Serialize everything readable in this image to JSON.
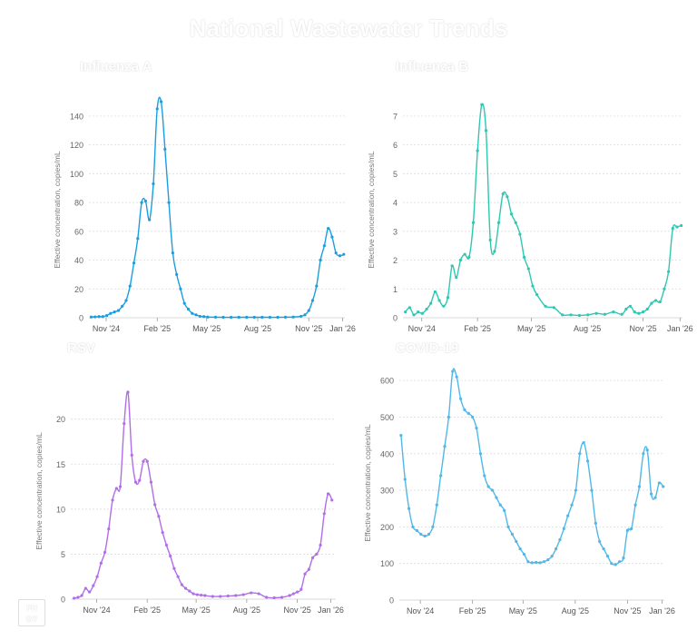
{
  "title": "National Wastewater Trends",
  "logo_text": "FH\nGY",
  "axis_ylabel": "Effective concentration, copies/mL",
  "chart_data": [
    {
      "type": "line",
      "title": "Influenza A",
      "color": "#1a9ee0",
      "ylabel": "Effective concentration, copies/mL",
      "ylim": [
        0,
        150
      ],
      "yticks": [
        0,
        20,
        40,
        60,
        80,
        100,
        120,
        140
      ],
      "xlim": [
        "2024-10-01",
        "2026-01-05"
      ],
      "xticks": [
        {
          "date": "2024-11-01",
          "label": "Nov '24"
        },
        {
          "date": "2025-02-01",
          "label": "Feb '25"
        },
        {
          "date": "2025-05-01",
          "label": "May '25"
        },
        {
          "date": "2025-08-01",
          "label": "Aug '25"
        },
        {
          "date": "2025-11-01",
          "label": "Nov '25"
        },
        {
          "date": "2026-01-01",
          "label": "Jan '26"
        }
      ],
      "x": [
        "2024-10-05",
        "2024-10-12",
        "2024-10-19",
        "2024-10-26",
        "2024-11-02",
        "2024-11-09",
        "2024-11-16",
        "2024-11-23",
        "2024-11-30",
        "2024-12-07",
        "2024-12-14",
        "2024-12-21",
        "2024-12-28",
        "2025-01-04",
        "2025-01-11",
        "2025-01-18",
        "2025-01-25",
        "2025-02-01",
        "2025-02-08",
        "2025-02-15",
        "2025-02-22",
        "2025-03-01",
        "2025-03-08",
        "2025-03-15",
        "2025-03-22",
        "2025-03-29",
        "2025-04-05",
        "2025-04-12",
        "2025-04-19",
        "2025-04-26",
        "2025-05-03",
        "2025-05-17",
        "2025-05-31",
        "2025-06-14",
        "2025-06-28",
        "2025-07-12",
        "2025-07-26",
        "2025-08-09",
        "2025-08-23",
        "2025-09-06",
        "2025-09-20",
        "2025-10-04",
        "2025-10-18",
        "2025-10-25",
        "2025-11-01",
        "2025-11-08",
        "2025-11-15",
        "2025-11-22",
        "2025-11-29",
        "2025-12-06",
        "2025-12-13",
        "2025-12-20",
        "2025-12-27",
        "2026-01-03"
      ],
      "y": [
        0.5,
        0.6,
        0.8,
        0.8,
        1.5,
        3,
        4,
        5,
        8,
        12,
        22,
        38,
        55,
        80,
        81,
        68,
        93,
        145,
        150,
        117,
        80,
        45,
        30,
        20,
        10,
        6,
        3,
        2,
        1,
        0.8,
        0.5,
        0.4,
        0.3,
        0.3,
        0.3,
        0.3,
        0.3,
        0.3,
        0.3,
        0.3,
        0.4,
        0.5,
        1,
        2,
        5,
        12,
        22,
        40,
        50,
        62,
        56,
        45,
        43,
        44
      ]
    },
    {
      "type": "line",
      "title": "Influenza B",
      "color": "#2ec7b1",
      "ylabel": "Effective concentration, copies/mL",
      "ylim": [
        0,
        7.5
      ],
      "yticks": [
        0,
        1,
        2,
        3,
        4,
        5,
        6,
        7
      ],
      "xlim": [
        "2024-10-01",
        "2026-01-05"
      ],
      "xticks": [
        {
          "date": "2024-11-01",
          "label": "Nov '24"
        },
        {
          "date": "2025-02-01",
          "label": "Feb '25"
        },
        {
          "date": "2025-05-01",
          "label": "May '25"
        },
        {
          "date": "2025-08-01",
          "label": "Aug '25"
        },
        {
          "date": "2025-11-01",
          "label": "Nov '25"
        },
        {
          "date": "2026-01-01",
          "label": "Jan '26"
        }
      ],
      "x": [
        "2024-10-05",
        "2024-10-12",
        "2024-10-19",
        "2024-10-26",
        "2024-11-02",
        "2024-11-09",
        "2024-11-16",
        "2024-11-23",
        "2024-11-30",
        "2024-12-07",
        "2024-12-14",
        "2024-12-21",
        "2024-12-28",
        "2025-01-04",
        "2025-01-11",
        "2025-01-18",
        "2025-01-25",
        "2025-02-01",
        "2025-02-08",
        "2025-02-15",
        "2025-02-22",
        "2025-03-01",
        "2025-03-08",
        "2025-03-15",
        "2025-03-22",
        "2025-03-29",
        "2025-04-05",
        "2025-04-12",
        "2025-04-19",
        "2025-04-26",
        "2025-05-03",
        "2025-05-10",
        "2025-05-24",
        "2025-06-07",
        "2025-06-21",
        "2025-07-05",
        "2025-07-19",
        "2025-08-02",
        "2025-08-16",
        "2025-08-30",
        "2025-09-13",
        "2025-09-27",
        "2025-10-04",
        "2025-10-11",
        "2025-10-18",
        "2025-10-25",
        "2025-11-01",
        "2025-11-08",
        "2025-11-15",
        "2025-11-22",
        "2025-11-29",
        "2025-12-06",
        "2025-12-13",
        "2025-12-20",
        "2025-12-27",
        "2026-01-03"
      ],
      "y": [
        0.2,
        0.35,
        0.1,
        0.2,
        0.15,
        0.3,
        0.5,
        0.9,
        0.6,
        0.4,
        0.7,
        1.8,
        1.4,
        2.0,
        2.2,
        2.1,
        3.3,
        5.8,
        7.4,
        6.5,
        2.7,
        2.3,
        3.3,
        4.3,
        4.2,
        3.6,
        3.3,
        2.9,
        2.1,
        1.7,
        1.1,
        0.8,
        0.4,
        0.35,
        0.1,
        0.1,
        0.08,
        0.1,
        0.15,
        0.12,
        0.2,
        0.12,
        0.3,
        0.4,
        0.2,
        0.15,
        0.2,
        0.3,
        0.5,
        0.6,
        0.55,
        1.0,
        1.6,
        3.1,
        3.15,
        3.2
      ]
    },
    {
      "type": "line",
      "title": "RSV",
      "color": "#b16ee8",
      "ylabel": "Effective concentration, copies/mL",
      "ylim": [
        0,
        24
      ],
      "yticks": [
        0,
        5,
        10,
        15,
        20
      ],
      "xlim": [
        "2024-09-15",
        "2026-01-10"
      ],
      "xticks": [
        {
          "date": "2024-11-01",
          "label": "Nov '24"
        },
        {
          "date": "2025-02-01",
          "label": "Feb '25"
        },
        {
          "date": "2025-05-01",
          "label": "May '25"
        },
        {
          "date": "2025-08-01",
          "label": "Aug '25"
        },
        {
          "date": "2025-11-01",
          "label": "Nov '25"
        },
        {
          "date": "2026-01-01",
          "label": "Jan '26"
        }
      ],
      "x": [
        "2024-09-21",
        "2024-09-28",
        "2024-10-05",
        "2024-10-12",
        "2024-10-19",
        "2024-10-26",
        "2024-11-02",
        "2024-11-09",
        "2024-11-16",
        "2024-11-23",
        "2024-11-30",
        "2024-12-07",
        "2024-12-14",
        "2024-12-21",
        "2024-12-28",
        "2025-01-04",
        "2025-01-11",
        "2025-01-18",
        "2025-01-25",
        "2025-02-01",
        "2025-02-08",
        "2025-02-15",
        "2025-02-22",
        "2025-03-01",
        "2025-03-08",
        "2025-03-15",
        "2025-03-22",
        "2025-03-29",
        "2025-04-05",
        "2025-04-12",
        "2025-04-19",
        "2025-04-26",
        "2025-05-03",
        "2025-05-10",
        "2025-05-17",
        "2025-05-31",
        "2025-06-14",
        "2025-06-28",
        "2025-07-12",
        "2025-07-26",
        "2025-08-09",
        "2025-08-23",
        "2025-09-06",
        "2025-09-20",
        "2025-10-04",
        "2025-10-18",
        "2025-10-25",
        "2025-11-01",
        "2025-11-08",
        "2025-11-15",
        "2025-11-22",
        "2025-11-29",
        "2025-12-06",
        "2025-12-13",
        "2025-12-20",
        "2025-12-27",
        "2026-01-03"
      ],
      "y": [
        0.1,
        0.2,
        0.4,
        1.2,
        0.8,
        1.5,
        2.5,
        4.0,
        5.2,
        7.8,
        11.0,
        12.3,
        12.5,
        19.5,
        23.0,
        16.0,
        13.0,
        13.2,
        15.3,
        15.3,
        13.0,
        10.5,
        9.2,
        7.4,
        6.0,
        4.8,
        3.4,
        2.5,
        1.6,
        1.2,
        0.9,
        0.6,
        0.5,
        0.45,
        0.4,
        0.3,
        0.3,
        0.35,
        0.4,
        0.5,
        0.7,
        0.6,
        0.2,
        0.15,
        0.2,
        0.4,
        0.6,
        0.8,
        1.1,
        2.8,
        3.3,
        4.6,
        5.0,
        6.0,
        9.5,
        11.7,
        11.0
      ]
    },
    {
      "type": "line",
      "title": "COVID-19",
      "color": "#4fb8e8",
      "ylabel": "Effective concentration, copies/mL",
      "ylim": [
        0,
        640
      ],
      "yticks": [
        0,
        100,
        200,
        300,
        400,
        500,
        600
      ],
      "xlim": [
        "2024-09-25",
        "2026-01-05"
      ],
      "xticks": [
        {
          "date": "2024-11-01",
          "label": "Nov '24"
        },
        {
          "date": "2025-02-01",
          "label": "Feb '25"
        },
        {
          "date": "2025-05-01",
          "label": "May '25"
        },
        {
          "date": "2025-08-01",
          "label": "Aug '25"
        },
        {
          "date": "2025-11-01",
          "label": "Nov '25"
        },
        {
          "date": "2026-01-01",
          "label": "Jan '26"
        }
      ],
      "x": [
        "2024-09-28",
        "2024-10-05",
        "2024-10-12",
        "2024-10-19",
        "2024-10-26",
        "2024-11-02",
        "2024-11-09",
        "2024-11-16",
        "2024-11-23",
        "2024-11-30",
        "2024-12-07",
        "2024-12-14",
        "2024-12-21",
        "2024-12-28",
        "2025-01-04",
        "2025-01-11",
        "2025-01-18",
        "2025-01-25",
        "2025-02-01",
        "2025-02-08",
        "2025-02-15",
        "2025-02-22",
        "2025-03-01",
        "2025-03-08",
        "2025-03-15",
        "2025-03-22",
        "2025-03-29",
        "2025-04-05",
        "2025-04-12",
        "2025-04-19",
        "2025-04-26",
        "2025-05-03",
        "2025-05-10",
        "2025-05-17",
        "2025-05-24",
        "2025-05-31",
        "2025-06-07",
        "2025-06-14",
        "2025-06-21",
        "2025-06-28",
        "2025-07-05",
        "2025-07-12",
        "2025-07-19",
        "2025-07-26",
        "2025-08-02",
        "2025-08-09",
        "2025-08-16",
        "2025-08-23",
        "2025-08-30",
        "2025-09-06",
        "2025-09-13",
        "2025-09-20",
        "2025-09-27",
        "2025-10-04",
        "2025-10-11",
        "2025-10-18",
        "2025-10-25",
        "2025-11-01",
        "2025-11-08",
        "2025-11-15",
        "2025-11-22",
        "2025-11-29",
        "2025-12-06",
        "2025-12-13",
        "2025-12-20",
        "2025-12-27",
        "2026-01-03"
      ],
      "y": [
        450,
        330,
        250,
        200,
        190,
        180,
        175,
        180,
        200,
        260,
        340,
        420,
        500,
        625,
        610,
        550,
        520,
        510,
        500,
        470,
        400,
        340,
        310,
        300,
        280,
        260,
        245,
        200,
        180,
        160,
        140,
        125,
        105,
        102,
        103,
        102,
        105,
        110,
        120,
        140,
        165,
        195,
        230,
        260,
        300,
        400,
        430,
        380,
        300,
        210,
        160,
        140,
        120,
        100,
        97,
        105,
        115,
        190,
        195,
        260,
        310,
        400,
        410,
        290,
        280,
        320,
        310
      ]
    }
  ]
}
